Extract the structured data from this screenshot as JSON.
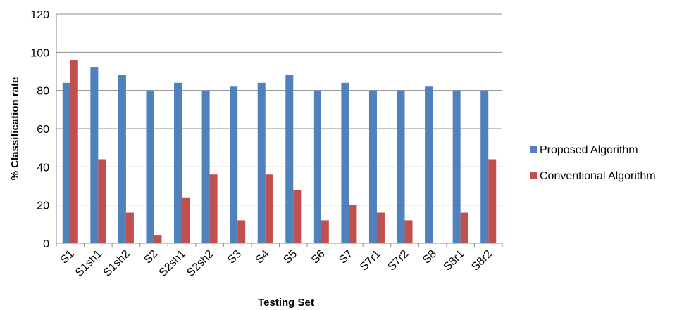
{
  "chart_data": {
    "type": "bar",
    "title": "",
    "xlabel": "Testing  Set",
    "ylabel": "% Classification rate",
    "ylim": [
      0,
      120
    ],
    "yticks": [
      0,
      20,
      40,
      60,
      80,
      100,
      120
    ],
    "grid": true,
    "legend_position": "right",
    "categories": [
      "S1",
      "S1sh1",
      "S1sh2",
      "S2",
      "S2sh1",
      "S2sh2",
      "S3",
      "S4",
      "S5",
      "S6",
      "S7",
      "S7r1",
      "S7r2",
      "S8",
      "S8r1",
      "S8r2"
    ],
    "series": [
      {
        "name": "Proposed Algorithm",
        "color": "#4F81BD",
        "values": [
          84,
          92,
          88,
          80,
          84,
          80,
          82,
          84,
          88,
          80,
          84,
          80,
          80,
          82,
          80,
          80
        ]
      },
      {
        "name": "Conventional Algorithm",
        "color": "#C0504D",
        "values": [
          96,
          44,
          16,
          4,
          24,
          36,
          12,
          36,
          28,
          12,
          20,
          16,
          12,
          0,
          16,
          44
        ]
      }
    ]
  }
}
